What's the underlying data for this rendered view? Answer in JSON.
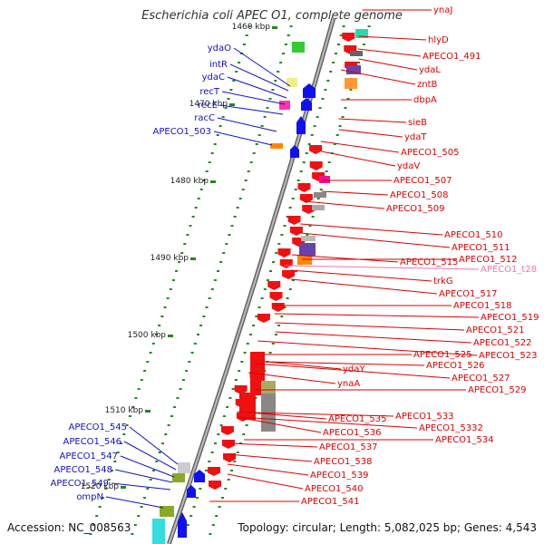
{
  "header": {
    "title": "Escherichia coli APEC O1, complete genome"
  },
  "footer": {
    "accession": "Accession: NC_008563",
    "topology": "Topology: circular; Length: 5,082,025 bp; Genes: 4,543"
  },
  "colors": {
    "left_label": "#1010cc",
    "right_label": "#dd0000",
    "trna_label": "#ee77aa",
    "tick": "#228822",
    "backbone": "#888888"
  },
  "kbp_markers": [
    "1460 kbp",
    "1470 kbp",
    "1480 kbp",
    "1490 kbp",
    "1500 kbp",
    "1510 kbp",
    "1520 kbp"
  ],
  "left_genes": [
    "ydaO",
    "intR",
    "ydaC",
    "recT",
    "recE",
    "racC",
    "APECO1_503",
    "APECO1_545",
    "APECO1_546",
    "APECO1_547",
    "APECO1_548",
    "APECO1_549",
    "ompN"
  ],
  "right_genes": [
    "ynaJ",
    "hlyD",
    "APECO1_491",
    "ydaL",
    "zntB",
    "dbpA",
    "sieB",
    "ydaT",
    "APECO1_505",
    "ydaV",
    "APECO1_507",
    "APECO1_508",
    "APECO1_509",
    "APECO1_510",
    "APECO1_511",
    "APECO1_512",
    "APECO1_t28",
    "APECO1_515",
    "trkG",
    "APECO1_517",
    "APECO1_518",
    "APECO1_519",
    "APECO1_521",
    "APECO1_522",
    "APECO1_523",
    "APECO1_525",
    "APECO1_526",
    "ydaY",
    "ynaA",
    "APECO1_527",
    "APECO1_529",
    "APECO1_533",
    "APECO1_535",
    "APECO1_5332",
    "APECO1_536",
    "APECO1_534",
    "APECO1_537",
    "APECO1_538",
    "APECO1_539",
    "APECO1_540",
    "APECO1_541"
  ]
}
